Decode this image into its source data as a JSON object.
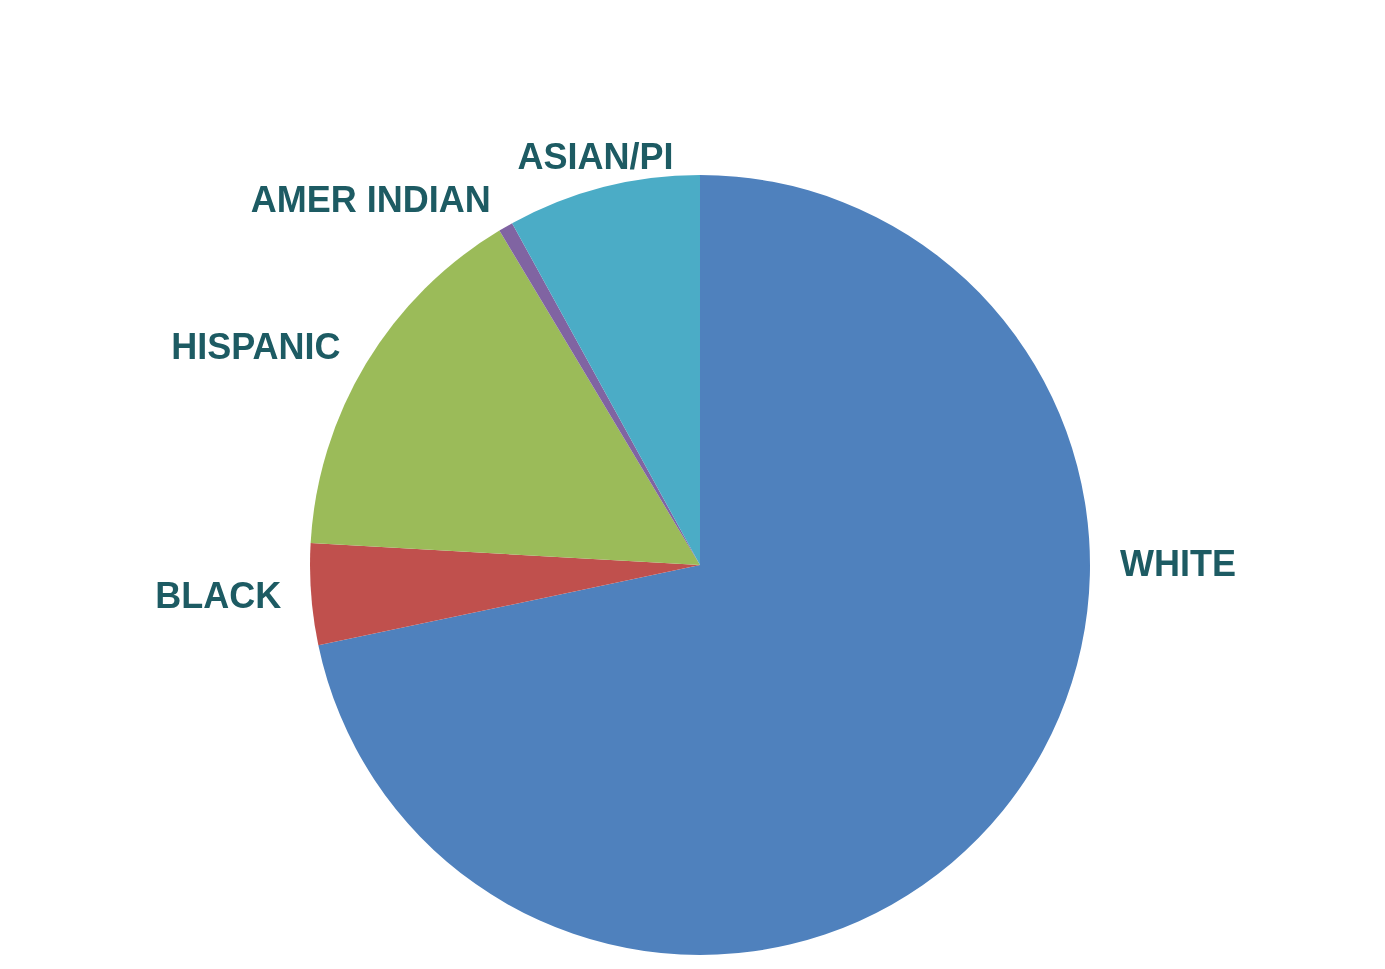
{
  "chart_data": {
    "type": "pie",
    "categories": [
      "WHITE",
      "BLACK",
      "HISPANIC",
      "AMER INDIAN",
      "ASIAN/PI"
    ],
    "values": [
      71.7,
      4.2,
      15.5,
      0.6,
      8.0
    ],
    "colors": [
      "#4f81bd",
      "#c0504d",
      "#9bbb59",
      "#8064a2",
      "#4bacc6"
    ]
  }
}
